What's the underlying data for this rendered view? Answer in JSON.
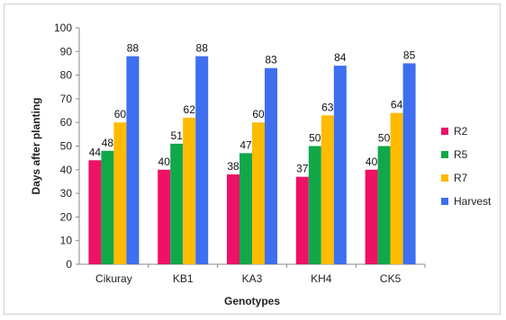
{
  "chart_data": {
    "type": "bar",
    "title": "",
    "xlabel": "Genotypes",
    "ylabel": "Days after planting",
    "ylim": [
      0,
      100
    ],
    "ytick_step": 10,
    "grid": false,
    "legend_position": "right",
    "categories": [
      "Cikuray",
      "KB1",
      "KA3",
      "KH4",
      "CK5"
    ],
    "series": [
      {
        "name": "R2",
        "color": "#ee1166",
        "values": [
          44,
          40,
          38,
          37,
          40
        ]
      },
      {
        "name": "R5",
        "color": "#11a84a",
        "values": [
          48,
          51,
          47,
          50,
          50
        ]
      },
      {
        "name": "R7",
        "color": "#ffbb00",
        "values": [
          60,
          62,
          60,
          63,
          64
        ]
      },
      {
        "name": "Harvest",
        "color": "#3d6ff0",
        "values": [
          88,
          88,
          83,
          84,
          85
        ]
      }
    ]
  }
}
